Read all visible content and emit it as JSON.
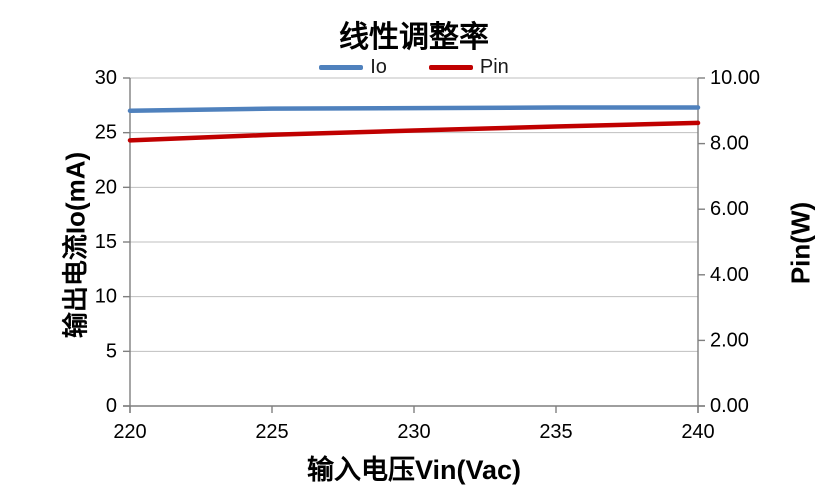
{
  "chart_data": {
    "type": "line",
    "title": "线性调整率",
    "xlabel": "输入电压Vin(Vac)",
    "x": [
      220,
      225,
      230,
      235,
      240
    ],
    "xlim": [
      220,
      240
    ],
    "x_tick_labels": [
      "220",
      "225",
      "230",
      "235",
      "240"
    ],
    "left_axis": {
      "label": "输出电流Io(mA)",
      "lim": [
        0,
        30
      ],
      "tick_values": [
        0,
        5,
        10,
        15,
        20,
        25,
        30
      ],
      "tick_labels": [
        "0",
        "5",
        "10",
        "15",
        "20",
        "25",
        "30"
      ]
    },
    "right_axis": {
      "label": "Pin(W)",
      "lim": [
        0,
        10
      ],
      "tick_values": [
        0,
        2,
        4,
        6,
        8,
        10
      ],
      "tick_labels": [
        "0.00",
        "2.00",
        "4.00",
        "6.00",
        "8.00",
        "10.00"
      ]
    },
    "grid": {
      "on": true,
      "axis": "left",
      "values": [
        5,
        10,
        15,
        20,
        25,
        30
      ]
    },
    "legend": {
      "position": "top-center"
    },
    "series": [
      {
        "name": "Io",
        "axis": "left",
        "color": "#4F81BD",
        "values": [
          27.0,
          27.2,
          27.25,
          27.3,
          27.3
        ]
      },
      {
        "name": "Pin",
        "axis": "right",
        "color": "#C00000",
        "values": [
          8.1,
          8.27,
          8.4,
          8.52,
          8.63
        ]
      }
    ],
    "colors": {
      "grid": "#BFBFBF",
      "axis": "#7F7F7F",
      "tick_text": "#000000"
    }
  }
}
